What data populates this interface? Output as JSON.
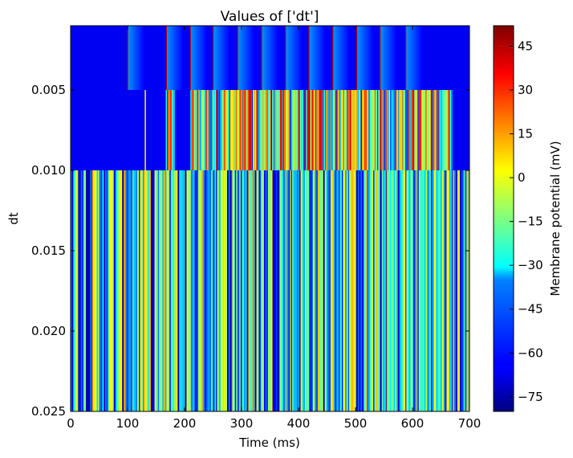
{
  "chart_data": {
    "type": "heatmap",
    "title": "Values of ['dt']",
    "xlabel": "Time (ms)",
    "ylabel": "dt",
    "xlim": [
      0,
      700
    ],
    "ylim": [
      0.025,
      0.001
    ],
    "x_ticks": [
      "0",
      "100",
      "200",
      "300",
      "400",
      "500",
      "600",
      "700"
    ],
    "x_tick_values": [
      0,
      100,
      200,
      300,
      400,
      500,
      600,
      700
    ],
    "y_ticks": [
      "0.005",
      "0.010",
      "0.015",
      "0.020",
      "0.025"
    ],
    "y_tick_values": [
      0.005,
      0.01,
      0.015,
      0.02,
      0.025
    ],
    "colorbar": {
      "label": "Membrane potential (mV)",
      "range": [
        -80,
        52
      ],
      "ticks": [
        "45",
        "30",
        "15",
        "0",
        "−15",
        "−30",
        "−45",
        "−60",
        "−75"
      ],
      "tick_values": [
        45,
        30,
        15,
        0,
        -15,
        -30,
        -45,
        -60,
        -75
      ],
      "colormap": "jet"
    },
    "rows": [
      {
        "dt_range": [
          0.001,
          0.005
        ],
        "background_mV": -65,
        "spike_times_ms": [
          100,
          168,
          210,
          250,
          293,
          335,
          377,
          418,
          460,
          502,
          543,
          588
        ],
        "spike_shading": "decay"
      },
      {
        "dt_range": [
          0.005,
          0.01
        ],
        "background_mV": -65,
        "dense_segments_ms": [
          [
            167,
            182
          ],
          [
            210,
            670
          ]
        ],
        "single_spikes_ms": [
          130
        ],
        "oscillation_mV": [
          -60,
          45
        ]
      },
      {
        "dt_range": [
          0.01,
          0.025
        ],
        "oscillation_range_ms": [
          0,
          700
        ],
        "oscillation_mV": [
          -75,
          15
        ]
      }
    ]
  }
}
